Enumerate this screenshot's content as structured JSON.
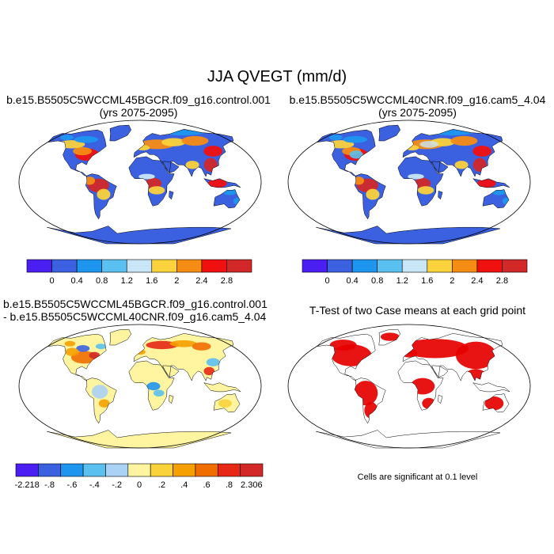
{
  "figure": {
    "title": "JJA QVEGT (mm/d)"
  },
  "panels": [
    {
      "id": "top-left",
      "title_lines": [
        "b.e15.B5505C5WCCML45BGCR.f09_g16.control.001",
        "(yrs 2075-2095)"
      ],
      "kind": "field",
      "palette": "main"
    },
    {
      "id": "top-right",
      "title_lines": [
        "b.e15.B5505C5WCCML40CNR.f09_g16.cam5_4.04",
        "(yrs 2075-2095)"
      ],
      "kind": "field",
      "palette": "main"
    },
    {
      "id": "bottom-left",
      "title_lines": [
        "b.e15.B5505C5WCCML45BGCR.f09_g16.control.001",
        "- b.e15.B5505C5WCCML40CNR.f09_g16.cam5_4.04"
      ],
      "kind": "difference",
      "palette": "diff"
    },
    {
      "id": "bottom-right",
      "title_lines": [
        "T-Test of two Case means at each grid point"
      ],
      "kind": "significance",
      "palette": "sig"
    }
  ],
  "colorbars": {
    "main": {
      "colors": [
        "#4b1ef2",
        "#3c61e0",
        "#1e96f0",
        "#5ac0f0",
        "#c8e6f5",
        "#fad23c",
        "#f58c14",
        "#f01010",
        "#d22828"
      ],
      "tick_labels": [
        "0",
        "0.4",
        "0.8",
        "1.2",
        "1.6",
        "2",
        "2.4",
        "2.8"
      ]
    },
    "diff": {
      "colors": [
        "#4b1ef2",
        "#3c61e0",
        "#1e96f0",
        "#5ac0f0",
        "#aad2f5",
        "#fff5a0",
        "#fad23c",
        "#f5a000",
        "#f06e00",
        "#e62814",
        "#d22828"
      ],
      "tick_labels": [
        "-2.218",
        "-.8",
        "-.6",
        "-.4",
        "-.2",
        "0",
        ".2",
        ".4",
        ".6",
        ".8",
        "2.306"
      ]
    }
  },
  "footnote": "Cells are significant at 0.1 level",
  "chart_data": [
    {
      "type": "heatmap",
      "title": "b.e15.B5505C5WCCML45BGCR.f09_g16.control.001 (yrs 2075-2095)",
      "projection": "robinson",
      "field": "QVEGT",
      "season": "JJA",
      "units": "mm/d",
      "levels": [
        0,
        0.4,
        0.8,
        1.2,
        1.6,
        2,
        2.4,
        2.8
      ]
    },
    {
      "type": "heatmap",
      "title": "b.e15.B5505C5WCCML40CNR.f09_g16.cam5_4.04 (yrs 2075-2095)",
      "projection": "robinson",
      "field": "QVEGT",
      "season": "JJA",
      "units": "mm/d",
      "levels": [
        0,
        0.4,
        0.8,
        1.2,
        1.6,
        2,
        2.4,
        2.8
      ]
    },
    {
      "type": "heatmap",
      "title": "b.e15.B5505C5WCCML45BGCR.f09_g16.control.001 - b.e15.B5505C5WCCML40CNR.f09_g16.cam5_4.04",
      "projection": "robinson",
      "field": "QVEGT difference",
      "levels": [
        -0.8,
        -0.6,
        -0.4,
        -0.2,
        0,
        0.2,
        0.4,
        0.6,
        0.8
      ],
      "min_label": -2.218,
      "max_label": 2.306
    },
    {
      "type": "heatmap",
      "title": "T-Test of two Case means at each grid point",
      "projection": "robinson",
      "significance_level": 0.1
    }
  ]
}
